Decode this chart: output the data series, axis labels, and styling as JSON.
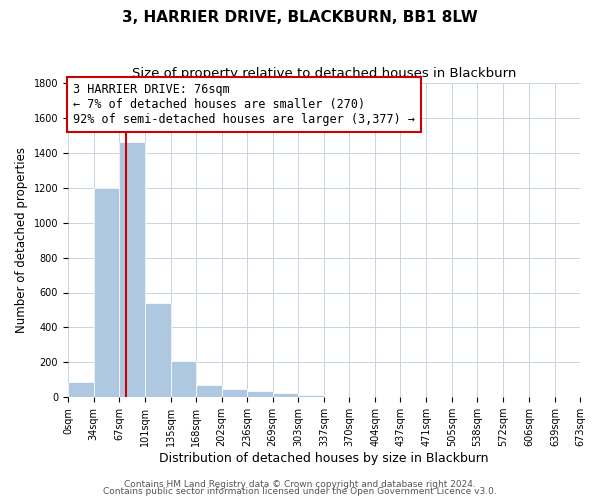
{
  "title": "3, HARRIER DRIVE, BLACKBURN, BB1 8LW",
  "subtitle": "Size of property relative to detached houses in Blackburn",
  "xlabel": "Distribution of detached houses by size in Blackburn",
  "ylabel": "Number of detached properties",
  "bar_values": [
    90,
    1200,
    1460,
    540,
    205,
    68,
    48,
    35,
    25,
    15,
    0,
    0,
    0,
    0,
    0,
    0,
    0,
    0,
    0
  ],
  "bin_edges": [
    0,
    34,
    67,
    101,
    135,
    168,
    202,
    236,
    269,
    303,
    337,
    370,
    404,
    437,
    471,
    505,
    538,
    572,
    606,
    640
  ],
  "tick_labels": [
    "0sqm",
    "34sqm",
    "67sqm",
    "101sqm",
    "135sqm",
    "168sqm",
    "202sqm",
    "236sqm",
    "269sqm",
    "303sqm",
    "337sqm",
    "370sqm",
    "404sqm",
    "437sqm",
    "471sqm",
    "505sqm",
    "538sqm",
    "572sqm",
    "606sqm",
    "639sqm",
    "673sqm"
  ],
  "bar_color": "#adc8e0",
  "bar_edge_color": "#ffffff",
  "property_line_x": 76,
  "property_line_color": "#cc0000",
  "annotation_text": "3 HARRIER DRIVE: 76sqm\n← 7% of detached houses are smaller (270)\n92% of semi-detached houses are larger (3,377) →",
  "annotation_box_color": "#ffffff",
  "annotation_box_edge": "#cc0000",
  "ylim": [
    0,
    1800
  ],
  "yticks": [
    0,
    200,
    400,
    600,
    800,
    1000,
    1200,
    1400,
    1600,
    1800
  ],
  "background_color": "#ffffff",
  "grid_color": "#c8d4de",
  "footer_line1": "Contains HM Land Registry data © Crown copyright and database right 2024.",
  "footer_line2": "Contains public sector information licensed under the Open Government Licence v3.0.",
  "title_fontsize": 11,
  "subtitle_fontsize": 9.5,
  "xlabel_fontsize": 9,
  "ylabel_fontsize": 8.5,
  "tick_fontsize": 7,
  "annotation_fontsize": 8.5,
  "footer_fontsize": 6.5
}
